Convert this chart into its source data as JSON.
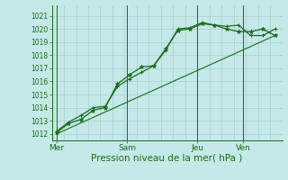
{
  "bg_color": "#c5e8e8",
  "grid_color": "#a0c8c8",
  "line_color": "#1a6b1a",
  "xlabel": "Pression niveau de la mer( hPa )",
  "xlabel_fontsize": 7.5,
  "yticks": [
    1012,
    1013,
    1014,
    1015,
    1016,
    1017,
    1018,
    1019,
    1020,
    1021
  ],
  "ylim": [
    1011.5,
    1021.8
  ],
  "day_labels": [
    "Mer",
    "Sam",
    "Jeu",
    "Ven"
  ],
  "day_positions": [
    0.0,
    2.9,
    5.8,
    7.7
  ],
  "xlim": [
    -0.2,
    9.3
  ],
  "line1_x": [
    0,
    0.5,
    1.0,
    1.5,
    2.0,
    2.5,
    3.0,
    3.5,
    4.0,
    4.5,
    5.0,
    5.5,
    6.0,
    6.5,
    7.0,
    7.5,
    8.0,
    8.5,
    9.0
  ],
  "line1_y": [
    1012.1,
    1012.8,
    1013.1,
    1013.8,
    1014.0,
    1015.8,
    1016.5,
    1017.1,
    1017.2,
    1018.5,
    1019.9,
    1020.0,
    1020.4,
    1020.3,
    1020.0,
    1019.8,
    1019.8,
    1020.0,
    1019.5
  ],
  "line2_x": [
    0,
    0.5,
    1.0,
    1.5,
    2.0,
    2.5,
    3.0,
    3.5,
    4.0,
    4.5,
    5.0,
    5.5,
    6.0,
    6.5,
    7.0,
    7.5,
    8.0,
    8.5,
    9.0
  ],
  "line2_y": [
    1012.2,
    1012.9,
    1013.4,
    1014.0,
    1014.1,
    1015.6,
    1016.2,
    1016.7,
    1017.2,
    1018.4,
    1020.0,
    1020.1,
    1020.5,
    1020.3,
    1020.2,
    1020.3,
    1019.5,
    1019.5,
    1020.0
  ],
  "line3_x": [
    0,
    9.0
  ],
  "line3_y": [
    1012.0,
    1019.5
  ],
  "vline_x": [
    0.0,
    2.9,
    5.8,
    7.7
  ],
  "tick_color": "#1a6b1a",
  "ytick_fontsize": 5.5,
  "xtick_fontsize": 6.5
}
